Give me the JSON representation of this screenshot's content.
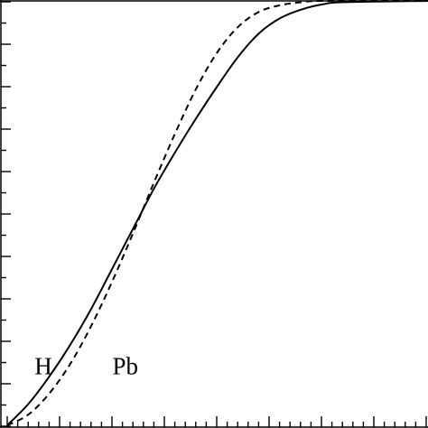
{
  "chart_data": {
    "type": "line",
    "title": "",
    "xlabel": "",
    "ylabel": "",
    "xlim": [
      0,
      1
    ],
    "ylim": [
      0,
      1
    ],
    "grid": false,
    "legend": "none",
    "x_ticks": {
      "count": 8,
      "minor_per_major": 5
    },
    "y_ticks": {
      "count": 10,
      "minor_per_major": 2
    },
    "series": [
      {
        "name": "H",
        "style": "solid",
        "color": "#000000",
        "x": [
          0.0,
          0.05,
          0.1,
          0.15,
          0.2,
          0.25,
          0.3,
          0.35,
          0.4,
          0.45,
          0.5,
          0.55,
          0.6,
          0.65,
          0.7,
          0.75,
          0.8,
          1.0
        ],
        "y": [
          0.0,
          0.05,
          0.115,
          0.19,
          0.275,
          0.37,
          0.465,
          0.56,
          0.645,
          0.725,
          0.8,
          0.87,
          0.925,
          0.96,
          0.98,
          0.992,
          0.997,
          1.0
        ]
      },
      {
        "name": "Pb",
        "style": "dashed",
        "color": "#000000",
        "x": [
          0.0,
          0.05,
          0.1,
          0.15,
          0.2,
          0.25,
          0.3,
          0.35,
          0.4,
          0.45,
          0.5,
          0.55,
          0.6,
          0.65,
          0.7,
          0.75,
          1.0
        ],
        "y": [
          0.0,
          0.025,
          0.075,
          0.145,
          0.235,
          0.34,
          0.455,
          0.575,
          0.69,
          0.795,
          0.88,
          0.94,
          0.975,
          0.99,
          0.997,
          1.0,
          1.0
        ]
      }
    ],
    "annotations": [
      {
        "text": "H",
        "x": 0.065,
        "y": 0.12
      },
      {
        "text": "Pb",
        "x": 0.25,
        "y": 0.12
      }
    ]
  }
}
